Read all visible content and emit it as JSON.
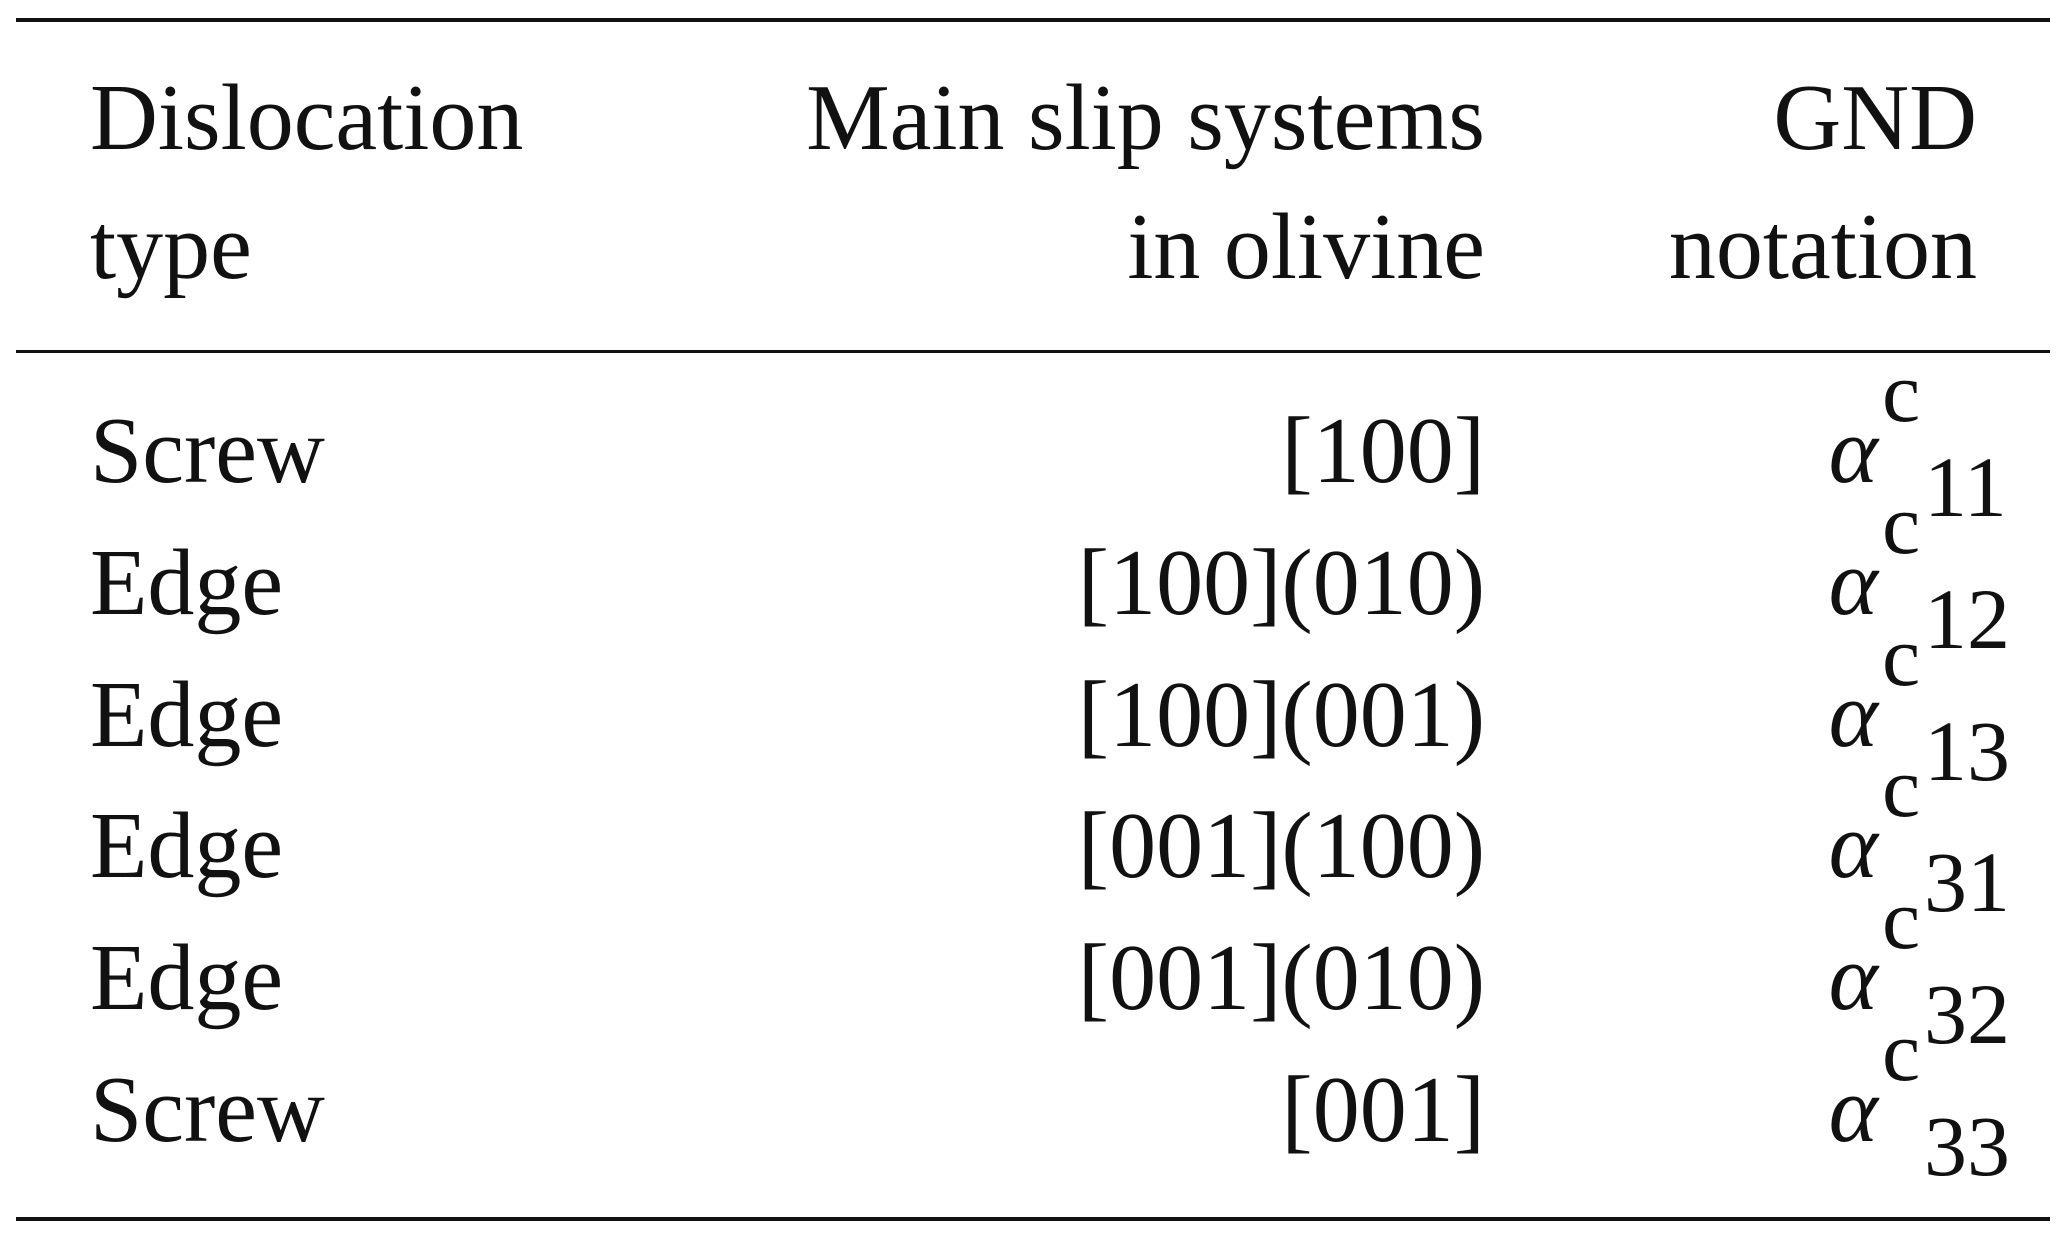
{
  "table": {
    "headers": [
      {
        "line1": "Dislocation",
        "line2": "type"
      },
      {
        "line1": "Main slip systems",
        "line2": "in olivine"
      },
      {
        "line1": "GND",
        "line2": "notation"
      }
    ],
    "rows": [
      {
        "type": "Screw",
        "slip": "[100]",
        "symbol": "α",
        "sup": "c",
        "sub": "11"
      },
      {
        "type": "Edge",
        "slip": "[100](010)",
        "symbol": "α",
        "sup": "c",
        "sub": "12"
      },
      {
        "type": "Edge",
        "slip": "[100](001)",
        "symbol": "α",
        "sup": "c",
        "sub": "13"
      },
      {
        "type": "Edge",
        "slip": "[001](100)",
        "symbol": "α",
        "sup": "c",
        "sub": "31"
      },
      {
        "type": "Edge",
        "slip": "[001](010)",
        "symbol": "α",
        "sup": "c",
        "sub": "32"
      },
      {
        "type": "Screw",
        "slip": "[001]",
        "symbol": "α",
        "sup": "c",
        "sub": "33"
      }
    ]
  }
}
